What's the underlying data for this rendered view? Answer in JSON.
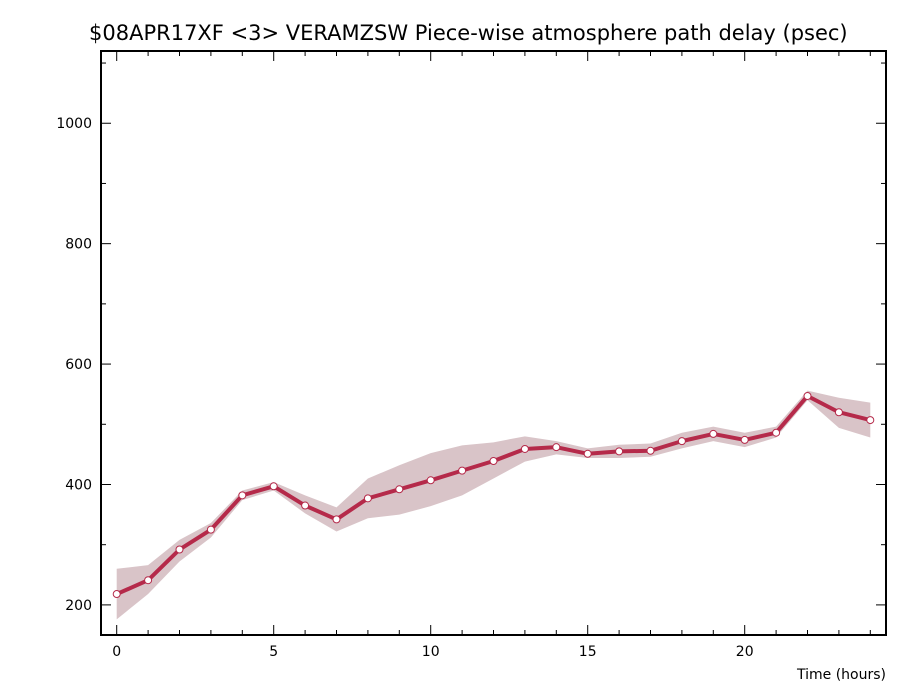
{
  "chart_data": {
    "type": "line",
    "title": "$08APR17XF <3>  VERAMZSW  Piece-wise atmosphere path delay (psec)",
    "xlabel": "Time (hours)",
    "ylabel": "",
    "xlim": [
      -0.5,
      24.5
    ],
    "ylim": [
      150,
      1120
    ],
    "x_ticks": [
      0,
      5,
      10,
      15,
      20
    ],
    "y_ticks": [
      200,
      400,
      600,
      800,
      1000
    ],
    "x_minor_step": 1,
    "y_minor_step": 100,
    "grid": false,
    "colors": {
      "line": "#b52a4a",
      "band": "#d9c4c8",
      "marker_fill": "#ffffff"
    },
    "series": [
      {
        "x": [
          0,
          1,
          2,
          3,
          4,
          5,
          6,
          7,
          8,
          9,
          10,
          11,
          12,
          13,
          14,
          15,
          16,
          17,
          18,
          19,
          20,
          21,
          22,
          23,
          24
        ],
        "values": [
          218,
          241,
          292,
          325,
          382,
          397,
          365,
          342,
          377,
          392,
          407,
          423,
          439,
          459,
          462,
          451,
          455,
          456,
          472,
          484,
          474,
          486,
          547,
          520,
          507
        ],
        "upper": [
          260,
          266,
          308,
          336,
          390,
          404,
          382,
          362,
          410,
          432,
          452,
          465,
          470,
          480,
          472,
          460,
          466,
          468,
          486,
          496,
          486,
          496,
          556,
          544,
          536
        ],
        "lower": [
          176,
          218,
          272,
          312,
          374,
          390,
          352,
          322,
          344,
          350,
          364,
          382,
          410,
          438,
          450,
          444,
          444,
          446,
          460,
          472,
          462,
          478,
          540,
          494,
          478
        ]
      }
    ]
  }
}
